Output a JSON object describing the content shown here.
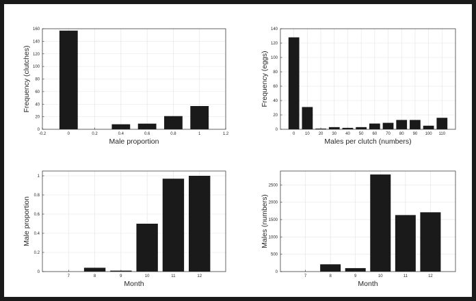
{
  "chart_data": [
    {
      "type": "bar",
      "categories": [
        0,
        0.2,
        0.4,
        0.6,
        0.8,
        1
      ],
      "values": [
        157,
        0,
        8,
        9,
        21,
        37
      ],
      "xlabel": "Male proportion",
      "ylabel": "Frequency (clutches)",
      "xlim": [
        -0.2,
        1.2
      ],
      "ylim": [
        0,
        160
      ],
      "xticks": [
        "-0.2",
        "0",
        "0.2",
        "0.4",
        "0.6",
        "0.8",
        "1",
        "1.2"
      ],
      "yticks": [
        "0",
        "20",
        "40",
        "60",
        "80",
        "100",
        "120",
        "140",
        "160"
      ],
      "grid": true,
      "bar_color": "#1a1a1a"
    },
    {
      "type": "bar",
      "categories": [
        0,
        10,
        20,
        30,
        40,
        50,
        60,
        70,
        80,
        90,
        100,
        110
      ],
      "values": [
        128,
        31,
        1,
        3,
        2,
        3,
        8,
        9,
        13,
        13,
        5,
        16
      ],
      "xlabel": "Males per clutch (numbers)",
      "ylabel": "Frequency (eggs)",
      "xlim": [
        -10,
        120
      ],
      "ylim": [
        0,
        140
      ],
      "xticks": [
        "0",
        "10",
        "20",
        "30",
        "40",
        "50",
        "60",
        "70",
        "80",
        "90",
        "100",
        "110"
      ],
      "yticks": [
        "0",
        "20",
        "40",
        "60",
        "80",
        "100",
        "120",
        "140"
      ],
      "grid": true,
      "bar_color": "#1a1a1a"
    },
    {
      "type": "bar",
      "categories": [
        7,
        8,
        9,
        10,
        11,
        12
      ],
      "values": [
        0,
        0.04,
        0.01,
        0.5,
        0.97,
        1.0
      ],
      "xlabel": "Month",
      "ylabel": "Male proportion",
      "xlim": [
        6,
        13
      ],
      "ylim": [
        0,
        1.05
      ],
      "xticks": [
        "7",
        "8",
        "9",
        "10",
        "11",
        "12"
      ],
      "yticks": [
        "0",
        "0.2",
        "0.4",
        "0.6",
        "0.8",
        "1"
      ],
      "grid": true,
      "bar_color": "#1a1a1a"
    },
    {
      "type": "bar",
      "categories": [
        7,
        8,
        9,
        10,
        11,
        12
      ],
      "values": [
        0,
        210,
        100,
        2800,
        1630,
        1710
      ],
      "xlabel": "Month",
      "ylabel": "Males (numbers)",
      "xlim": [
        6,
        13
      ],
      "ylim": [
        0,
        2900
      ],
      "xticks": [
        "7",
        "8",
        "9",
        "10",
        "11",
        "12"
      ],
      "yticks": [
        "0",
        "500",
        "1000",
        "1500",
        "2000",
        "2500"
      ],
      "grid": true,
      "bar_color": "#1a1a1a"
    }
  ]
}
